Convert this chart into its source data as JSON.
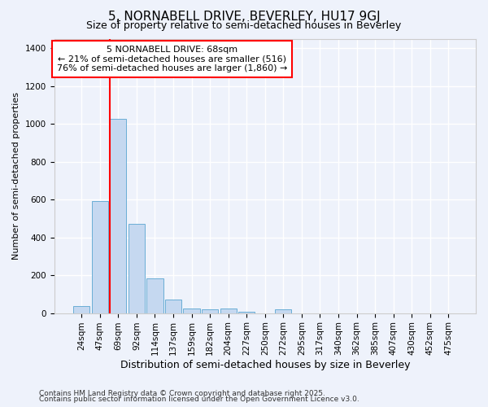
{
  "title1": "5, NORNABELL DRIVE, BEVERLEY, HU17 9GJ",
  "title2": "Size of property relative to semi-detached houses in Beverley",
  "xlabel": "Distribution of semi-detached houses by size in Beverley",
  "ylabel": "Number of semi-detached properties",
  "categories": [
    "24sqm",
    "47sqm",
    "69sqm",
    "92sqm",
    "114sqm",
    "137sqm",
    "159sqm",
    "182sqm",
    "204sqm",
    "227sqm",
    "250sqm",
    "272sqm",
    "295sqm",
    "317sqm",
    "340sqm",
    "362sqm",
    "385sqm",
    "407sqm",
    "430sqm",
    "452sqm",
    "475sqm"
  ],
  "values": [
    37,
    590,
    1025,
    473,
    185,
    72,
    25,
    18,
    22,
    5,
    0,
    18,
    0,
    0,
    0,
    0,
    0,
    0,
    0,
    0,
    0
  ],
  "bar_color": "#c5d8f0",
  "bar_edge_color": "#6aaed6",
  "annotation_box_text": "5 NORNABELL DRIVE: 68sqm\n← 21% of semi-detached houses are smaller (516)\n76% of semi-detached houses are larger (1,860) →",
  "annotation_box_color": "white",
  "annotation_box_edge_color": "red",
  "vline_color": "red",
  "ylim": [
    0,
    1450
  ],
  "background_color": "#eef2fb",
  "grid_color": "white",
  "footer1": "Contains HM Land Registry data © Crown copyright and database right 2025.",
  "footer2": "Contains public sector information licensed under the Open Government Licence v3.0.",
  "title1_fontsize": 11,
  "title2_fontsize": 9,
  "xlabel_fontsize": 9,
  "ylabel_fontsize": 8,
  "tick_fontsize": 7.5,
  "ann_fontsize": 8,
  "footer_fontsize": 6.5
}
